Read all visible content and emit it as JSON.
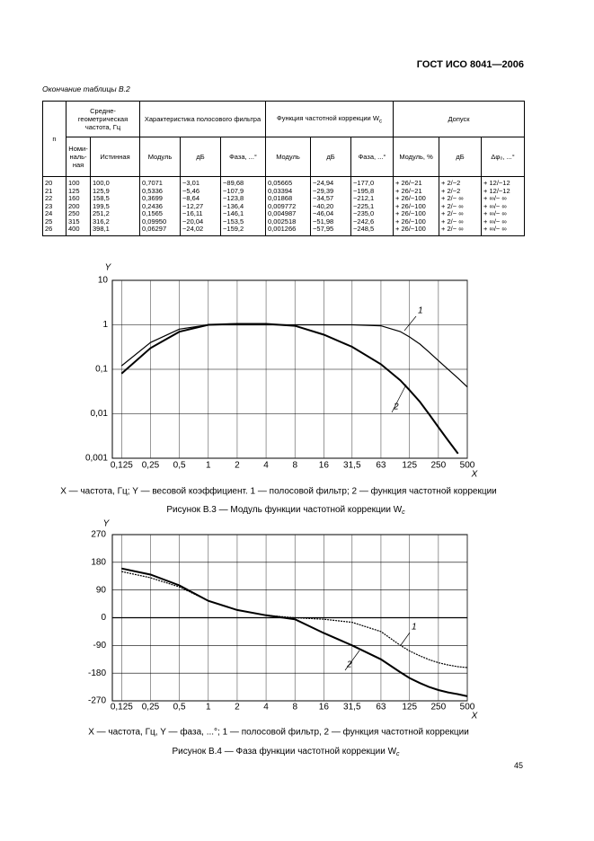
{
  "header": {
    "title": "ГОСТ ИСО 8041—2006"
  },
  "table": {
    "caption": "Окончание таблицы B.2",
    "head": {
      "n": "n",
      "mid_freq": "Средне-геометрическая частота, Гц",
      "nominal": "Номи-наль-ная",
      "true": "Истинная",
      "filter": "Характеристика полосового фильтра",
      "filter_cols": [
        "Модуль",
        "дБ",
        "Фаза, ...°"
      ],
      "weighting": "Функция частотной коррекции W",
      "weighting_sub": "c",
      "weighting_cols": [
        "Модуль",
        "дБ",
        "Фаза, ...°"
      ],
      "tolerance": "Допуск",
      "tolerance_cols": [
        "Модуль, %",
        "дБ",
        "Δφ₀, ...°"
      ]
    },
    "rows": [
      [
        "20",
        "100",
        "100,0",
        "0,7071",
        "−3,01",
        "−89,68",
        "0,05665",
        "−24,94",
        "−177,0",
        "+ 26/−21",
        "+ 2/−2",
        "+ 12/−12"
      ],
      [
        "21",
        "125",
        "125,9",
        "0,5336",
        "−5,46",
        "−107,9",
        "0,03394",
        "−29,39",
        "−195,8",
        "+ 26/−21",
        "+ 2/−2",
        "+ 12/−12"
      ],
      [
        "22",
        "160",
        "158,5",
        "0,3699",
        "−8,64",
        "−123,8",
        "0,01868",
        "−34,57",
        "−212,1",
        "+ 26/−100",
        "+ 2/− ∞",
        "+ ∞/− ∞"
      ],
      [
        "23",
        "200",
        "199,5",
        "0,2436",
        "−12,27",
        "−136,4",
        "0,009772",
        "−40,20",
        "−225,1",
        "+ 26/−100",
        "+ 2/− ∞",
        "+ ∞/− ∞"
      ],
      [
        "24",
        "250",
        "251,2",
        "0,1565",
        "−16,11",
        "−146,1",
        "0,004987",
        "−46,04",
        "−235,0",
        "+ 26/−100",
        "+ 2/− ∞",
        "+ ∞/− ∞"
      ],
      [
        "25",
        "315",
        "316,2",
        "0,09950",
        "−20,04",
        "−153,5",
        "0,002518",
        "−51,98",
        "−242,6",
        "+ 26/−100",
        "+ 2/− ∞",
        "+ ∞/− ∞"
      ],
      [
        "26",
        "400",
        "398,1",
        "0,06297",
        "−24,02",
        "−159,2",
        "0,001266",
        "−57,95",
        "−248,5",
        "+ 26/−100",
        "+ 2/− ∞",
        "+ ∞/− ∞"
      ]
    ]
  },
  "chart_data": [
    {
      "type": "line",
      "x_label": "X",
      "y_label": "Y",
      "xscale": "log",
      "yscale": "log",
      "grid": true,
      "xlim": [
        0.1,
        500
      ],
      "xticks": [
        {
          "value": 0.125,
          "label": "0,125"
        },
        {
          "value": 0.25,
          "label": "0,25"
        },
        {
          "value": 0.5,
          "label": "0,5"
        },
        1,
        2,
        4,
        8,
        16,
        {
          "value": 31.5,
          "label": "31,5"
        },
        63,
        125,
        250,
        500
      ],
      "ylim": [
        0.001,
        10
      ],
      "yticks": [
        10,
        1,
        {
          "value": 0.1,
          "label": "0,1"
        },
        {
          "value": 0.01,
          "label": "0,01"
        },
        {
          "value": 0.001,
          "label": "0,001"
        }
      ],
      "series": [
        {
          "name": "1",
          "color": "#000000",
          "x": [
            0.125,
            0.25,
            0.5,
            1,
            2,
            4,
            8,
            16,
            31.5,
            63,
            100,
            125,
            160,
            200,
            250,
            315,
            400,
            500
          ],
          "values": [
            0.12,
            0.4,
            0.8,
            1,
            1,
            1,
            1,
            1,
            1,
            0.95,
            0.7071,
            0.5336,
            0.3699,
            0.2436,
            0.1565,
            0.0995,
            0.06297,
            0.04
          ]
        },
        {
          "name": "2",
          "color": "#000000",
          "x": [
            0.125,
            0.25,
            0.5,
            1,
            2,
            4,
            8,
            16,
            31.5,
            63,
            100,
            125,
            160,
            200,
            250,
            315,
            400
          ],
          "values": [
            0.08,
            0.3,
            0.7,
            1,
            1.05,
            1.05,
            0.95,
            0.6,
            0.32,
            0.13,
            0.05665,
            0.03394,
            0.01868,
            0.009772,
            0.004987,
            0.002518,
            0.001266
          ]
        }
      ],
      "legend_text": "X — частота, Гц; Y — весовой коэффициент. 1 — полосовой фильтр; 2 — функция частотной коррекции",
      "caption": "Рисунок B.3 — Модуль функции частотной коррекции W",
      "caption_sub": "c"
    },
    {
      "type": "line",
      "x_label": "X",
      "y_label": "Y",
      "xscale": "log",
      "yscale": "linear",
      "grid": true,
      "xlim": [
        0.1,
        500
      ],
      "xticks": [
        {
          "value": 0.125,
          "label": "0,125"
        },
        {
          "value": 0.25,
          "label": "0,25"
        },
        {
          "value": 0.5,
          "label": "0,5"
        },
        1,
        2,
        4,
        8,
        16,
        {
          "value": 31.5,
          "label": "31,5"
        },
        63,
        125,
        250,
        500
      ],
      "ylim": [
        -270,
        270
      ],
      "yticks": [
        270,
        180,
        90,
        0,
        -90,
        -180,
        -270
      ],
      "series": [
        {
          "name": "1",
          "color": "#000000",
          "x": [
            0.125,
            0.25,
            0.5,
            1,
            2,
            4,
            8,
            16,
            31.5,
            63,
            100,
            125,
            160,
            200,
            250,
            315,
            400,
            500
          ],
          "values": [
            150,
            130,
            100,
            55,
            25,
            8,
            0,
            -5,
            -15,
            -45,
            -89.68,
            -107.9,
            -123.8,
            -136.4,
            -146.1,
            -153.5,
            -159.2,
            -162
          ]
        },
        {
          "name": "2",
          "color": "#000000",
          "x": [
            0.125,
            0.25,
            0.5,
            1,
            2,
            4,
            8,
            16,
            31.5,
            63,
            100,
            125,
            160,
            200,
            250,
            315,
            400,
            500
          ],
          "values": [
            160,
            140,
            105,
            55,
            25,
            8,
            -5,
            -50,
            -90,
            -135,
            -177,
            -195.8,
            -212.1,
            -225.1,
            -235,
            -242.6,
            -248.5,
            -255
          ]
        }
      ],
      "legend_text": "X — частота, Гц, Y — фаза, ...°; 1 — полосовой фильтр, 2 — функция частотной коррекции",
      "caption": "Рисунок B.4 — Фаза функции частотной коррекции W",
      "caption_sub": "c"
    }
  ],
  "page_number": "45"
}
